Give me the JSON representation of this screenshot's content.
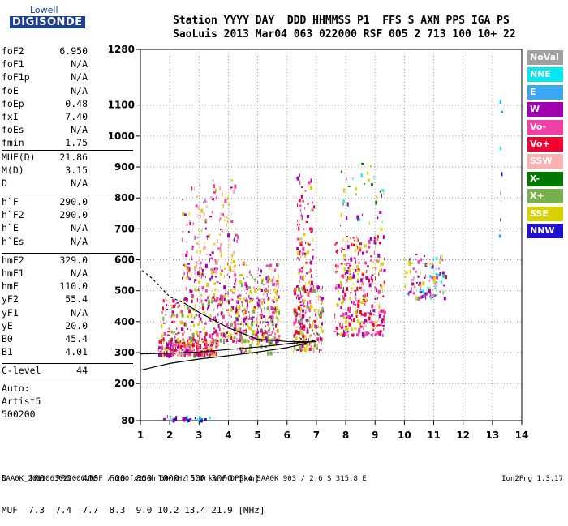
{
  "logo": {
    "line1": "Lowell",
    "line2": "DIGISONDE"
  },
  "header": {
    "labels": "Station YYYY DAY  DDD HHMMSS P1  FFS S AXN PPS IGA PS",
    "values": "SaoLuis 2013 Mar04 063 022000 RSF 005 2 713 100 10+ 22"
  },
  "params": {
    "group1": [
      {
        "k": "foF2",
        "v": "6.950"
      },
      {
        "k": "foF1",
        "v": "N/A"
      },
      {
        "k": "foF1p",
        "v": "N/A"
      },
      {
        "k": "foE",
        "v": "N/A"
      },
      {
        "k": "foEp",
        "v": "0.48"
      },
      {
        "k": "fxI",
        "v": "7.40"
      },
      {
        "k": "foEs",
        "v": "N/A"
      },
      {
        "k": "fmin",
        "v": "1.75"
      }
    ],
    "group2": [
      {
        "k": "MUF(D)",
        "v": "21.86"
      },
      {
        "k": "M(D)",
        "v": "3.15"
      },
      {
        "k": "D",
        "v": "N/A"
      }
    ],
    "group3": [
      {
        "k": "h`F",
        "v": "290.0"
      },
      {
        "k": "h`F2",
        "v": "290.0"
      },
      {
        "k": "h`E",
        "v": "N/A"
      },
      {
        "k": "h`Es",
        "v": "N/A"
      }
    ],
    "group4": [
      {
        "k": "hmF2",
        "v": "329.0"
      },
      {
        "k": "hmF1",
        "v": "N/A"
      },
      {
        "k": "hmE",
        "v": "110.0"
      },
      {
        "k": "yF2",
        "v": "55.4"
      },
      {
        "k": "yF1",
        "v": "N/A"
      },
      {
        "k": "yE",
        "v": "20.0"
      },
      {
        "k": "B0",
        "v": "45.4"
      },
      {
        "k": "B1",
        "v": "4.01"
      }
    ],
    "clevel": {
      "k": "C-level",
      "v": "44"
    },
    "auto": [
      "Auto:",
      "Artist5",
      "500200"
    ]
  },
  "legend": [
    {
      "label": "NoVal",
      "color": "#a0a0a0"
    },
    {
      "label": "NNE",
      "color": "#00e8f0"
    },
    {
      "label": "E",
      "color": "#3aa8f0"
    },
    {
      "label": "W",
      "color": "#a000b0"
    },
    {
      "label": "Vo-",
      "color": "#f040a8"
    },
    {
      "label": "Vo+",
      "color": "#f00030"
    },
    {
      "label": "SSW",
      "color": "#f8b0b0"
    },
    {
      "label": "X-",
      "color": "#007800"
    },
    {
      "label": "X+",
      "color": "#78b050"
    },
    {
      "label": "SSE",
      "color": "#d8d000"
    },
    {
      "label": "NNW",
      "color": "#2010d0"
    }
  ],
  "bottom": {
    "row1": "D    100  200  400  600  800 1000 1500 3000 [km]",
    "row2": "MUF  7.3  7.4  7.7  8.3  9.0 10.2 13.4 21.9 [MHz]"
  },
  "footer": {
    "left": "SAA0K_2013063022000.RSF / 260fx256h 50 kHz 5.0 km / DPS-4 SAA0K 903 / 2.6 S 315.8 E",
    "right": "Ion2Png 1.3.17"
  },
  "chart_data": {
    "type": "scatter",
    "xlabel": "",
    "ylabel": "",
    "xlim": [
      1,
      14
    ],
    "ylim": [
      80,
      1280
    ],
    "x_ticks": [
      1,
      2,
      3,
      4,
      5,
      6,
      7,
      8,
      9,
      10,
      11,
      12,
      13,
      14
    ],
    "y_ticks": [
      80,
      200,
      300,
      400,
      500,
      600,
      700,
      800,
      900,
      1000,
      1100,
      1280
    ],
    "grid": true,
    "legend_position": "right",
    "clusters": [
      {
        "x": [
          1.6,
          3.6
        ],
        "y": [
          295,
          345
        ],
        "colors": [
          "Vo+",
          "Vo-",
          "SSE",
          "W"
        ],
        "density": 260
      },
      {
        "x": [
          1.7,
          5.7
        ],
        "y": [
          340,
          480
        ],
        "colors": [
          "W",
          "Vo-",
          "SSE",
          "X+",
          "Vo+"
        ],
        "density": 380
      },
      {
        "x": [
          2.4,
          5.7
        ],
        "y": [
          470,
          600
        ],
        "colors": [
          "W",
          "Vo-",
          "SSE"
        ],
        "density": 160
      },
      {
        "x": [
          2.4,
          4.3
        ],
        "y": [
          560,
          860
        ],
        "colors": [
          "SSW",
          "Vo-",
          "W",
          "SSE"
        ],
        "density": 150
      },
      {
        "x": [
          4.2,
          5.7
        ],
        "y": [
          300,
          560
        ],
        "colors": [
          "SSE",
          "X+",
          "Vo-",
          "W"
        ],
        "density": 160
      },
      {
        "x": [
          6.2,
          7.2
        ],
        "y": [
          310,
          520
        ],
        "colors": [
          "Vo+",
          "Vo-",
          "SSE",
          "W",
          "X+"
        ],
        "density": 230
      },
      {
        "x": [
          6.3,
          6.9
        ],
        "y": [
          500,
          880
        ],
        "colors": [
          "SSE",
          "W",
          "Vo-",
          "Vo+"
        ],
        "density": 110
      },
      {
        "x": [
          7.6,
          9.3
        ],
        "y": [
          360,
          680
        ],
        "colors": [
          "SSE",
          "W",
          "Vo-",
          "Vo+"
        ],
        "density": 340
      },
      {
        "x": [
          7.8,
          9.3
        ],
        "y": [
          700,
          920
        ],
        "colors": [
          "SSE",
          "W",
          "X-",
          "NNE"
        ],
        "density": 40
      },
      {
        "x": [
          10.0,
          11.4
        ],
        "y": [
          480,
          620
        ],
        "colors": [
          "SSE",
          "Vo-",
          "NNE",
          "W"
        ],
        "density": 110
      },
      {
        "x": [
          13.2,
          13.3
        ],
        "y": [
          660,
          1280
        ],
        "colors": [
          "NNW",
          "NNE",
          "E"
        ],
        "density": 10
      },
      {
        "x": [
          1.7,
          3.4
        ],
        "y": [
          85,
          98
        ],
        "colors": [
          "NNW",
          "NNE",
          "W"
        ],
        "density": 25
      }
    ],
    "traces": [
      {
        "name": "o-trace",
        "x": [
          1,
          1.5,
          2,
          3,
          4,
          5,
          6,
          6.5,
          7
        ],
        "y": [
          243,
          254,
          265,
          279,
          290,
          302,
          316,
          326,
          342
        ]
      },
      {
        "name": "x-trace",
        "x": [
          1,
          2,
          3,
          4,
          5,
          5.7,
          6.1,
          6.5,
          7
        ],
        "y": [
          296,
          298,
          302,
          310,
          318,
          325,
          330,
          333,
          336
        ]
      },
      {
        "name": "upper-trace",
        "x": [
          1,
          1.4,
          2,
          2.5,
          3,
          4,
          5,
          6,
          6.5,
          7
        ],
        "y": [
          570,
          540,
          480,
          460,
          430,
          380,
          343,
          336,
          335,
          335
        ],
        "dashed_to": 2.5
      }
    ]
  }
}
